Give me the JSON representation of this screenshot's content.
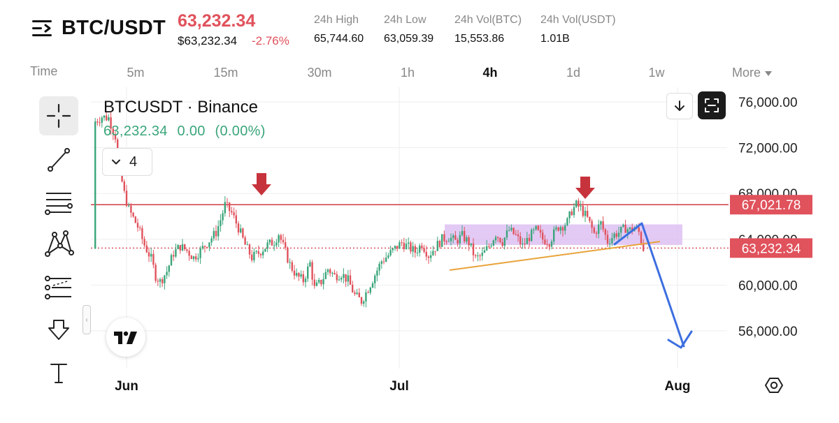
{
  "header": {
    "symbol": "BTC/USDT",
    "last_price": "63,232.34",
    "price_usd": "$63,232.34",
    "change_pct": "-2.76%",
    "stats": [
      {
        "label": "24h High",
        "value": "65,744.60"
      },
      {
        "label": "24h Low",
        "value": "63,059.39"
      },
      {
        "label": "24h Vol(BTC)",
        "value": "15,553.86"
      },
      {
        "label": "24h Vol(USDT)",
        "value": "1.01B"
      }
    ]
  },
  "timeframes": {
    "time_label": "Time",
    "items": [
      "5m",
      "15m",
      "30m",
      "1h",
      "4h",
      "1d",
      "1w"
    ],
    "active": "4h",
    "more_label": "More"
  },
  "toolbar": [
    "crosshair-icon",
    "trendline-icon",
    "fib-retracement-icon",
    "pattern-icon",
    "prediction-icon",
    "arrow-down-icon",
    "text-icon"
  ],
  "legend": {
    "title": "BTCUSDT · Binance",
    "price": "63,232.34",
    "change": "0.00",
    "change_pct": "(0.00%)",
    "indicator_count": "4"
  },
  "colors": {
    "up": "#3aa57a",
    "down": "#e0525c",
    "resistance": "#d23b45",
    "support": "#e8a33a",
    "consolidation": "#d9b8f2",
    "projection": "#3d6fe0",
    "marker_arrow": "#c7333c"
  },
  "chart_data": {
    "type": "candlestick",
    "x_labels": [
      "Jun",
      "Jul",
      "Aug"
    ],
    "y_ticks": [
      "76,000.00",
      "72,000.00",
      "68,000.00",
      "64,000.00",
      "60,000.00",
      "56,000.00"
    ],
    "ylim": [
      52800,
      76800
    ],
    "price_labels": {
      "resistance": "67,021.78",
      "last": "63,232.34"
    },
    "resistance_level": 67021.78,
    "last_price_level": 63232.34,
    "consolidation_zone": [
      63500,
      65300
    ],
    "trend_path": [
      [
        1,
        74300
      ],
      [
        4,
        74700
      ],
      [
        7,
        74600
      ],
      [
        10,
        73000
      ],
      [
        12,
        70000
      ],
      [
        14,
        68000
      ],
      [
        16,
        66600
      ],
      [
        20,
        65100
      ],
      [
        23,
        63500
      ],
      [
        26,
        62300
      ],
      [
        28,
        60800
      ],
      [
        30,
        60300
      ],
      [
        33,
        61200
      ],
      [
        36,
        62800
      ],
      [
        39,
        63400
      ],
      [
        42,
        63000
      ],
      [
        45,
        62400
      ],
      [
        48,
        63000
      ],
      [
        52,
        63900
      ],
      [
        55,
        64600
      ],
      [
        57,
        65700
      ],
      [
        59,
        67000
      ],
      [
        62,
        66300
      ],
      [
        65,
        65000
      ],
      [
        68,
        63500
      ],
      [
        71,
        62400
      ],
      [
        74,
        62800
      ],
      [
        78,
        63500
      ],
      [
        81,
        63800
      ],
      [
        83,
        64500
      ],
      [
        85,
        63400
      ],
      [
        88,
        61800
      ],
      [
        91,
        60800
      ],
      [
        94,
        60400
      ],
      [
        97,
        61900
      ],
      [
        99,
        59700
      ],
      [
        102,
        60300
      ],
      [
        105,
        61400
      ],
      [
        108,
        60800
      ],
      [
        111,
        61000
      ],
      [
        114,
        60400
      ],
      [
        117,
        59100
      ],
      [
        120,
        58600
      ],
      [
        123,
        59700
      ],
      [
        126,
        60900
      ],
      [
        129,
        62100
      ],
      [
        132,
        62600
      ],
      [
        135,
        63200
      ],
      [
        138,
        63700
      ],
      [
        141,
        63300
      ],
      [
        144,
        62900
      ],
      [
        147,
        63600
      ],
      [
        150,
        62600
      ],
      [
        153,
        63300
      ],
      [
        156,
        64000
      ],
      [
        159,
        64200
      ],
      [
        162,
        63800
      ],
      [
        165,
        64300
      ],
      [
        168,
        63700
      ],
      [
        171,
        62300
      ],
      [
        174,
        62600
      ],
      [
        177,
        63400
      ],
      [
        180,
        64500
      ],
      [
        183,
        63800
      ],
      [
        186,
        64800
      ],
      [
        189,
        64300
      ],
      [
        192,
        63400
      ],
      [
        195,
        64200
      ],
      [
        198,
        64800
      ],
      [
        201,
        64000
      ],
      [
        204,
        63800
      ],
      [
        206,
        64500
      ],
      [
        208,
        65100
      ],
      [
        210,
        65200
      ],
      [
        212,
        65500
      ],
      [
        214,
        66500
      ],
      [
        216,
        67000
      ],
      [
        218,
        66700
      ],
      [
        221,
        65800
      ],
      [
        224,
        64500
      ],
      [
        227,
        65400
      ],
      [
        230,
        63800
      ],
      [
        233,
        64400
      ],
      [
        236,
        64700
      ],
      [
        238,
        65000
      ],
      [
        240,
        64800
      ],
      [
        242,
        65000
      ],
      [
        244,
        64600
      ],
      [
        246,
        63200
      ]
    ]
  }
}
